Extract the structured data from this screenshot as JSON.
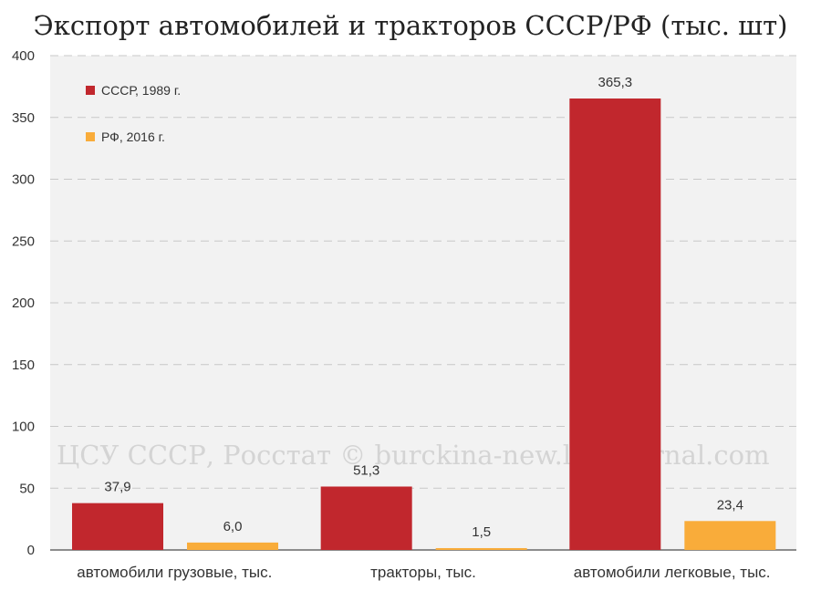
{
  "chart_data": {
    "type": "bar",
    "title": "Экспорт автомобилей и тракторов СССР/РФ (тыс. шт)",
    "categories": [
      "автомобили грузовые, тыс.",
      "тракторы, тыс.",
      "автомобили легковые, тыс."
    ],
    "series": [
      {
        "name": "СССР, 1989 г.",
        "color": "#c1272d",
        "values": [
          37.9,
          51.3,
          365.3
        ],
        "labels": [
          "37,9",
          "51,3",
          "365,3"
        ]
      },
      {
        "name": "РФ, 2016 г.",
        "color": "#f9ac3a",
        "values": [
          6.0,
          1.5,
          23.4
        ],
        "labels": [
          "6,0",
          "1,5",
          "23,4"
        ]
      }
    ],
    "ylim": [
      0,
      400
    ],
    "yticks": [
      0,
      50,
      100,
      150,
      200,
      250,
      300,
      350,
      400
    ],
    "grid": true,
    "legend": "top-left",
    "watermark": "ЦСУ СССР, Росстат © burckina-new.livejournal.com",
    "plot_background": "#f2f2f2"
  }
}
